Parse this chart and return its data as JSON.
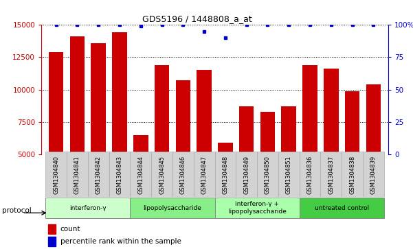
{
  "title": "GDS5196 / 1448808_a_at",
  "samples": [
    "GSM1304840",
    "GSM1304841",
    "GSM1304842",
    "GSM1304843",
    "GSM1304844",
    "GSM1304845",
    "GSM1304846",
    "GSM1304847",
    "GSM1304848",
    "GSM1304849",
    "GSM1304850",
    "GSM1304851",
    "GSM1304836",
    "GSM1304837",
    "GSM1304838",
    "GSM1304839"
  ],
  "counts": [
    12900,
    14100,
    13600,
    14450,
    6500,
    11900,
    10700,
    11500,
    5900,
    8700,
    8300,
    8700,
    11900,
    11600,
    9900,
    10400
  ],
  "percentile_values": [
    100,
    100,
    100,
    100,
    99,
    100,
    100,
    95,
    90,
    100,
    100,
    100,
    100,
    100,
    100,
    100
  ],
  "bar_color": "#cc0000",
  "dot_color": "#0000cc",
  "ylim_left": [
    5000,
    15000
  ],
  "ylim_right": [
    0,
    100
  ],
  "yticks_left": [
    5000,
    7500,
    10000,
    12500,
    15000
  ],
  "yticks_right": [
    0,
    25,
    50,
    75,
    100
  ],
  "groups": [
    {
      "label": "interferon-γ",
      "start": 0,
      "end": 3,
      "color": "#ccffcc"
    },
    {
      "label": "lipopolysaccharide",
      "start": 4,
      "end": 7,
      "color": "#88ee88"
    },
    {
      "label": "interferon-γ +\nlipopolysaccharide",
      "start": 8,
      "end": 11,
      "color": "#aaffaa"
    },
    {
      "label": "untreated control",
      "start": 12,
      "end": 15,
      "color": "#44cc44"
    }
  ],
  "protocol_label": "protocol",
  "legend_count_label": "count",
  "legend_percentile_label": "percentile rank within the sample",
  "background_color": "#ffffff"
}
